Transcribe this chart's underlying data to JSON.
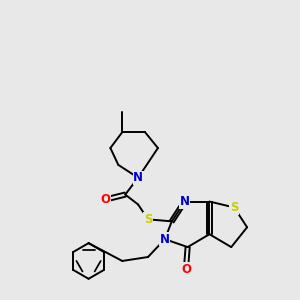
{
  "bg_color": "#e8e8e8",
  "atom_colors": {
    "N": "#0000cc",
    "O": "#ff0000",
    "S": "#cccc00",
    "C": "#000000"
  },
  "bond_color": "#000000",
  "bond_width": 1.4,
  "font_size_atom": 8.5
}
